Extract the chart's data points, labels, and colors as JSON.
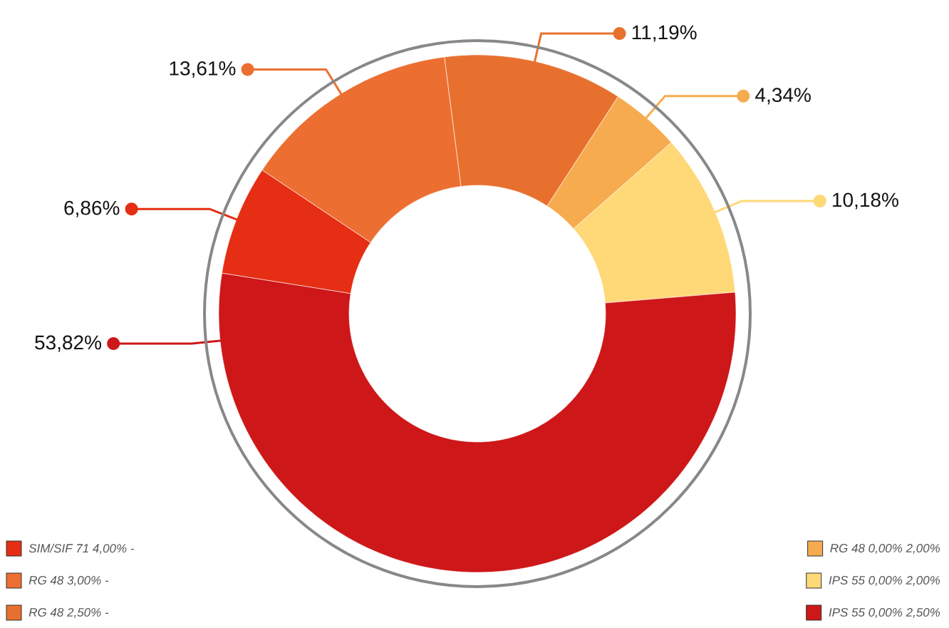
{
  "chart_data": {
    "type": "donut",
    "categories": [
      "SIM/SIF 71 4,00% -",
      "RG 48 3,00% -",
      "RG 48 2,50% -",
      "RG 48 0,00% 2,00%",
      "IPS 55 0,00% 2,00%",
      "IPS 55 0,00% 2,50%"
    ],
    "values": [
      6.86,
      13.61,
      11.19,
      4.34,
      10.18,
      53.82
    ],
    "colors": [
      "#e52e13",
      "#ec6f31",
      "#e8702e",
      "#f6ab4f",
      "#ffd878",
      "#cd1719"
    ],
    "value_labels": [
      "6,86%",
      "13,61%",
      "11,19%",
      "4,34%",
      "10,18%",
      "53,82%"
    ],
    "legend": "bottom"
  }
}
